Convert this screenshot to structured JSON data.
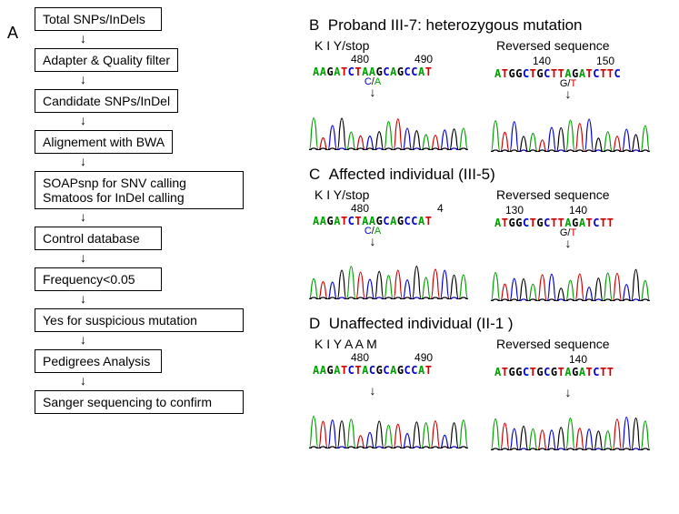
{
  "panelA": {
    "label": "A"
  },
  "panelB": {
    "label": "B"
  },
  "panelC": {
    "label": "C"
  },
  "panelD": {
    "label": "D"
  },
  "flowchart": {
    "steps": [
      "Total SNPs/InDels",
      "Adapter & Quality filter",
      "Candidate SNPs/InDel",
      "Alignement with BWA",
      "SOAPsnp for SNV calling\nSmatoos for InDel calling",
      "Control database",
      "Frequency<0.05",
      "Yes for suspicious mutation",
      "Pedigrees Analysis",
      "Sanger sequencing to confirm"
    ]
  },
  "seq": {
    "b": {
      "title": "Proband III-7: heterozygous mutation",
      "fwd": {
        "aa": "K   I     Y/stop",
        "pos1": "480",
        "pos2": "490",
        "nt": "AAGATCTAAGCAGCCAT",
        "mut": "C/A"
      },
      "rev": {
        "label": "Reversed sequence",
        "pos1": "140",
        "pos2": "150",
        "nt": "ATGGCTGCTTAGATCTTC",
        "mut": "G/T"
      }
    },
    "c": {
      "title": "Affected individual (III-5)",
      "fwd": {
        "aa": "K   I     Y/stop",
        "pos1": "480",
        "pos2": "4",
        "nt": "AAGATCTAAGCAGCCAT",
        "mut": "C/A"
      },
      "rev": {
        "label": "Reversed sequence",
        "pos1": "130",
        "pos2": "140",
        "nt": "ATGGCTGCTTAGATCTT",
        "mut": "G/T"
      }
    },
    "d": {
      "title": "Unaffected individual  (II-1 )",
      "fwd": {
        "aa": "K   I   Y   A   A   M",
        "pos1": "480",
        "pos2": "490",
        "nt": "AAGATCTACGCAGCCAT"
      },
      "rev": {
        "label": "Reversed sequence",
        "pos1": "",
        "pos2": "140",
        "nt": "ATGGCTGCGTAGATCTT"
      }
    }
  },
  "colors": {
    "A": "#00a000",
    "C": "#0000d0",
    "G": "#000000",
    "T": "#d00000",
    "bg": "#ffffff",
    "border": "#000000"
  },
  "chromatogram": {
    "peak_colors": [
      "#00a000",
      "#d00000",
      "#0000d0",
      "#000000"
    ],
    "height": 55,
    "width": 175
  }
}
